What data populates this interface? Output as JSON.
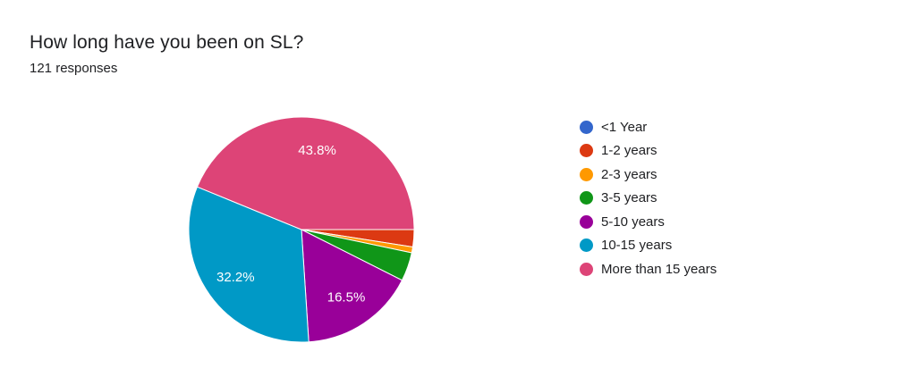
{
  "header": {
    "title": "How long have you been on SL?",
    "subtitle": "121 responses"
  },
  "chart_data": {
    "type": "pie",
    "categories": [
      "<1 Year",
      "1-2 years",
      "2-3 years",
      "3-5 years",
      "5-10 years",
      "10-15 years",
      "More than 15 years"
    ],
    "counts": [
      0,
      3,
      1,
      5,
      20,
      39,
      53
    ],
    "values_percent": [
      0,
      2.5,
      0.8,
      4.1,
      16.5,
      32.2,
      43.8
    ],
    "data_labels": [
      "",
      "",
      "",
      "",
      "16.5%",
      "32.2%",
      "43.8%"
    ],
    "colors": [
      "#3366cc",
      "#dc3912",
      "#ff9900",
      "#109618",
      "#990099",
      "#0099c6",
      "#dd4477"
    ],
    "legend_position": "right"
  }
}
